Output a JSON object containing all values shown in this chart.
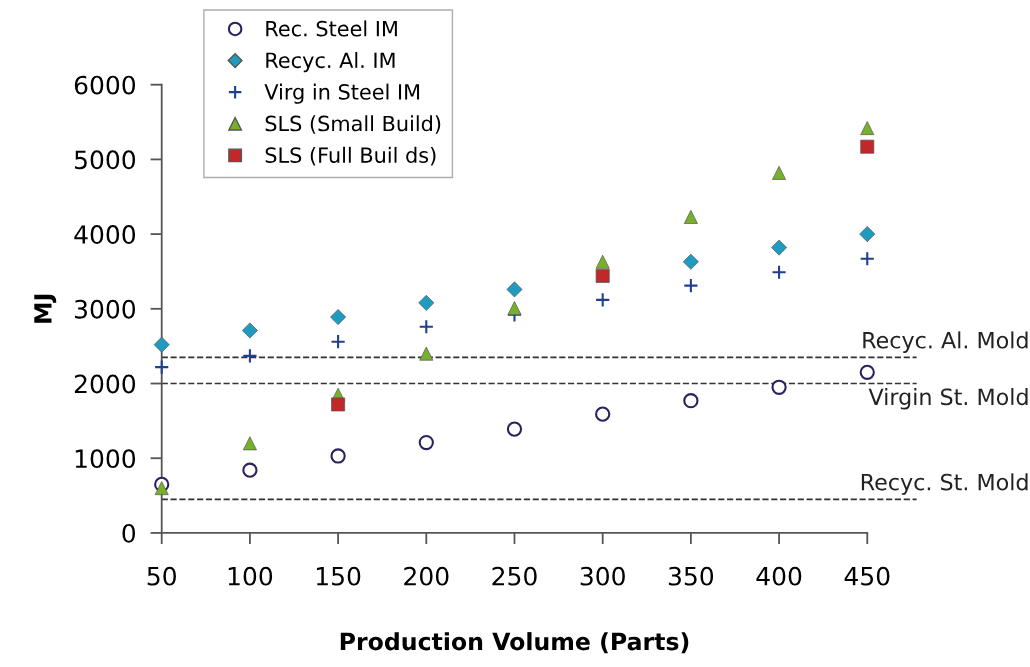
{
  "chart_data": {
    "type": "scatter",
    "xlabel": "Production Volume (Parts)",
    "ylabel": "MJ",
    "x": [
      50,
      100,
      150,
      200,
      250,
      300,
      350,
      400,
      450
    ],
    "xlim": [
      50,
      450
    ],
    "xticks": [
      50,
      100,
      150,
      200,
      250,
      300,
      350,
      400,
      450
    ],
    "ylim": [
      0,
      6000
    ],
    "yticks": [
      0,
      1000,
      2000,
      3000,
      4000,
      5000,
      6000
    ],
    "grid": false,
    "legend": "top left",
    "series": [
      {
        "name": "Rec. Steel IM",
        "color": "#2e1f5e",
        "marker": "circle",
        "values": [
          650,
          840,
          1030,
          1210,
          1390,
          1590,
          1770,
          1950,
          2150
        ]
      },
      {
        "name": "Recyc. Al. IM",
        "color": "#1f9bbf",
        "marker": "diamond",
        "values": [
          2520,
          2710,
          2890,
          3080,
          3260,
          null,
          3630,
          3820,
          4000
        ]
      },
      {
        "name": "Virg in Steel IM",
        "color": "#1f3f8f",
        "marker": "cross",
        "values": [
          2220,
          2370,
          2560,
          2760,
          2920,
          3120,
          3310,
          3490,
          3670
        ]
      },
      {
        "name": "SLS (Small Build)",
        "color": "#77b02a",
        "marker": "triangle",
        "values": [
          600,
          1200,
          1850,
          2400,
          3010,
          3630,
          4230,
          4820,
          5420
        ]
      },
      {
        "name": "SLS (Full Buil ds)",
        "color": "#c0282a",
        "marker": "square",
        "values": [
          null,
          null,
          1720,
          null,
          null,
          3440,
          null,
          null,
          5170
        ]
      }
    ],
    "ref_lines": [
      {
        "axis": "y",
        "value": 2350,
        "label": "Recyc. Al. Mold",
        "line_style": "dashed",
        "color": "#333333"
      },
      {
        "axis": "y",
        "value": 2000,
        "label": "Virgin St. Mold",
        "line_style": "dashed",
        "color": "#333333"
      },
      {
        "axis": "y",
        "value": 450,
        "label": "Recyc. St. Mold",
        "line_style": "dashed",
        "color": "#333333"
      }
    ]
  }
}
